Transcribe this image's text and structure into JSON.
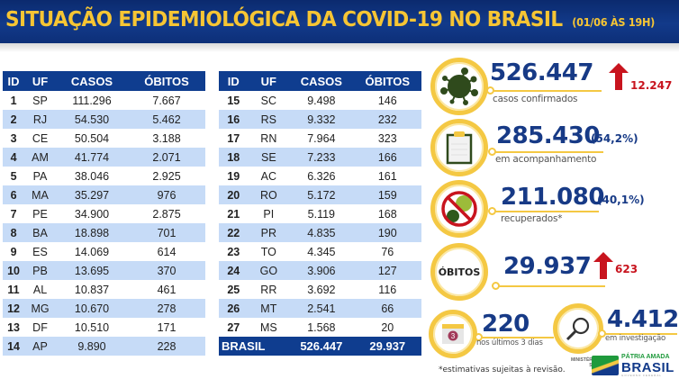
{
  "header": {
    "title": "SITUAÇÃO EPIDEMIOLÓGICA DA COVID-19 NO BRASIL",
    "date": "(01/06 ÀS 19H)"
  },
  "table": {
    "columns": [
      "ID",
      "UF",
      "CASOS",
      "ÓBITOS"
    ],
    "left_rows": [
      {
        "id": "1",
        "uf": "SP",
        "casos": "111.296",
        "obitos": "7.667"
      },
      {
        "id": "2",
        "uf": "RJ",
        "casos": "54.530",
        "obitos": "5.462"
      },
      {
        "id": "3",
        "uf": "CE",
        "casos": "50.504",
        "obitos": "3.188"
      },
      {
        "id": "4",
        "uf": "AM",
        "casos": "41.774",
        "obitos": "2.071"
      },
      {
        "id": "5",
        "uf": "PA",
        "casos": "38.046",
        "obitos": "2.925"
      },
      {
        "id": "6",
        "uf": "MA",
        "casos": "35.297",
        "obitos": "976"
      },
      {
        "id": "7",
        "uf": "PE",
        "casos": "34.900",
        "obitos": "2.875"
      },
      {
        "id": "8",
        "uf": "BA",
        "casos": "18.898",
        "obitos": "701"
      },
      {
        "id": "9",
        "uf": "ES",
        "casos": "14.069",
        "obitos": "614"
      },
      {
        "id": "10",
        "uf": "PB",
        "casos": "13.695",
        "obitos": "370"
      },
      {
        "id": "11",
        "uf": "AL",
        "casos": "10.837",
        "obitos": "461"
      },
      {
        "id": "12",
        "uf": "MG",
        "casos": "10.670",
        "obitos": "278"
      },
      {
        "id": "13",
        "uf": "DF",
        "casos": "10.510",
        "obitos": "171"
      },
      {
        "id": "14",
        "uf": "AP",
        "casos": "9.890",
        "obitos": "228"
      }
    ],
    "right_rows": [
      {
        "id": "15",
        "uf": "SC",
        "casos": "9.498",
        "obitos": "146"
      },
      {
        "id": "16",
        "uf": "RS",
        "casos": "9.332",
        "obitos": "232"
      },
      {
        "id": "17",
        "uf": "RN",
        "casos": "7.964",
        "obitos": "323"
      },
      {
        "id": "18",
        "uf": "SE",
        "casos": "7.233",
        "obitos": "166"
      },
      {
        "id": "19",
        "uf": "AC",
        "casos": "6.326",
        "obitos": "161"
      },
      {
        "id": "20",
        "uf": "RO",
        "casos": "5.172",
        "obitos": "159"
      },
      {
        "id": "21",
        "uf": "PI",
        "casos": "5.119",
        "obitos": "168"
      },
      {
        "id": "22",
        "uf": "PR",
        "casos": "4.835",
        "obitos": "190"
      },
      {
        "id": "23",
        "uf": "TO",
        "casos": "4.345",
        "obitos": "76"
      },
      {
        "id": "24",
        "uf": "GO",
        "casos": "3.906",
        "obitos": "127"
      },
      {
        "id": "25",
        "uf": "RR",
        "casos": "3.692",
        "obitos": "116"
      },
      {
        "id": "26",
        "uf": "MT",
        "casos": "2.541",
        "obitos": "66"
      },
      {
        "id": "27",
        "uf": "MS",
        "casos": "1.568",
        "obitos": "20"
      }
    ],
    "total": {
      "label": "BRASIL",
      "casos": "526.447",
      "obitos": "29.937"
    }
  },
  "stats": {
    "confirmados": {
      "value": "526.447",
      "label": "casos confirmados",
      "increase": "12.247",
      "icon": "virus-icon"
    },
    "acompanhamento": {
      "value": "285.430",
      "pct": "(54,2%)",
      "label": "em acompanhamento",
      "icon": "clipboard-icon"
    },
    "recuperados": {
      "value": "211.080",
      "pct": "(40,1%)",
      "label": "recuperados*",
      "icon": "no-virus-icon"
    },
    "obitos": {
      "badge": "ÓBITOS",
      "value": "29.937",
      "increase": "623"
    },
    "ultimos_dias": {
      "value": "220",
      "label": "nos últimos 3 dias",
      "calendar_day": "3",
      "icon": "calendar-icon"
    },
    "investigacao": {
      "value": "4.412",
      "label": "em investigação",
      "icon": "magnifier-icon"
    }
  },
  "footer": {
    "note": "*estimativas sujeitas à revisão.",
    "ministerio_line1": "MINISTÉRIO DA",
    "ministerio_line2": "SAÚDE",
    "logo_top": "PÁTRIA AMADA",
    "logo_main": "BRASIL",
    "logo_bottom": "GOVERNO FEDERAL"
  },
  "colors": {
    "header_bg": "#123a8a",
    "title_yellow": "#f6c534",
    "table_header": "#0f3d8f",
    "row_alt": "#c6dbf7",
    "accent_yellow": "#f4c843",
    "number_blue": "#173a86",
    "increase_red": "#c8141e"
  }
}
